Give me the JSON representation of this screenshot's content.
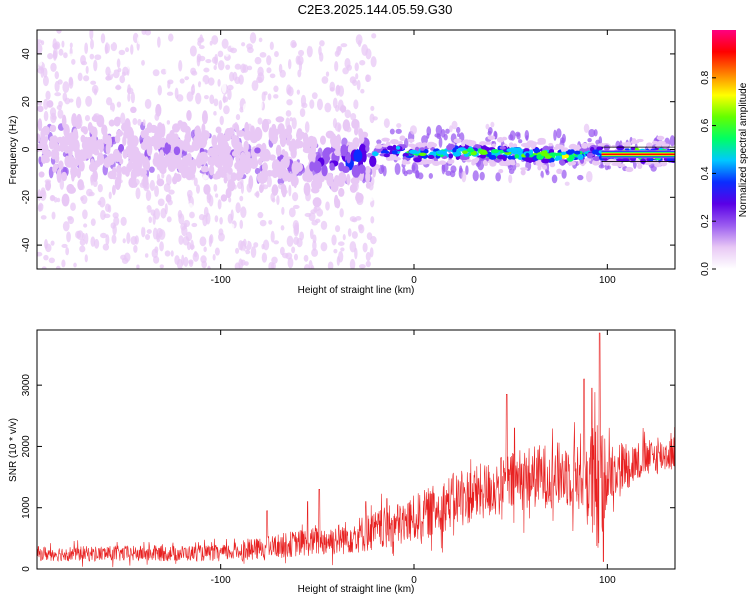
{
  "title": "C2E3.2025.144.05.59.G30",
  "chart_data": [
    {
      "type": "heatmap",
      "xlabel": "Height of straight line (km)",
      "ylabel": "Frequency (Hz)",
      "xlim": [
        -195,
        135
      ],
      "ylim": [
        -50,
        50
      ],
      "x_ticks": [
        -100,
        0,
        100
      ],
      "x_tick_labels": [
        "-100",
        "0",
        "100"
      ],
      "y_ticks": [
        -40,
        -20,
        0,
        20,
        40
      ],
      "y_tick_labels": [
        "-40",
        "-20",
        "0",
        "20",
        "40"
      ],
      "colorbar": {
        "label": "Normalized spectral amplitude",
        "range": [
          0,
          1
        ],
        "ticks": [
          0.0,
          0.2,
          0.4,
          0.6,
          0.8
        ],
        "tick_labels": [
          "0.0",
          "0.2",
          "0.4",
          "0.6",
          "0.8"
        ],
        "colors": [
          "#ffffff",
          "#e8c8f5",
          "#9b5cf0",
          "#5a00e6",
          "#0a2dff",
          "#00c8ff",
          "#00ff64",
          "#64ff00",
          "#ffff00",
          "#ff8000",
          "#ff0000",
          "#ff0080"
        ]
      },
      "ridge": {
        "description_points_x": [
          -195,
          -150,
          -100,
          -60,
          -40,
          -25,
          -10,
          0,
          20,
          60,
          80,
          92,
          100,
          135
        ],
        "center_freq_y": [
          0,
          0,
          -1,
          -4,
          -6,
          -3,
          0,
          -2,
          -1,
          -2,
          -3,
          -1,
          -2,
          -2
        ],
        "peak_amplitude": [
          0.15,
          0.2,
          0.2,
          0.25,
          0.35,
          0.45,
          0.6,
          0.7,
          0.75,
          0.8,
          0.8,
          0.5,
          0.9,
          0.95
        ]
      },
      "grid": false
    },
    {
      "type": "line",
      "xlabel": "Height of straight line (km)",
      "ylabel": "SNR (10 * v/v)",
      "xlim": [
        -195,
        135
      ],
      "ylim": [
        0,
        3900
      ],
      "x_ticks": [
        -100,
        0,
        100
      ],
      "x_tick_labels": [
        "-100",
        "0",
        "100"
      ],
      "y_ticks": [
        0,
        1000,
        2000,
        3000
      ],
      "y_tick_labels": [
        "0",
        "1000",
        "2000",
        "3000"
      ],
      "series": [
        {
          "color": "#e82020",
          "trend_x": [
            -195,
            -150,
            -100,
            -80,
            -60,
            -40,
            -20,
            -5,
            10,
            20,
            40,
            60,
            80,
            88,
            95,
            100,
            120,
            135
          ],
          "trend_y": [
            250,
            250,
            260,
            330,
            420,
            480,
            620,
            750,
            950,
            1120,
            1300,
            1500,
            1550,
            1600,
            1200,
            1600,
            1800,
            1900
          ],
          "noise_amplitude": [
            120,
            130,
            130,
            180,
            220,
            260,
            330,
            380,
            420,
            450,
            480,
            520,
            550,
            700,
            1200,
            500,
            300,
            280
          ],
          "spikes_x": [
            -76,
            -55,
            -49,
            -25,
            -14,
            48,
            52,
            88,
            92,
            96,
            98
          ],
          "spikes_y": [
            950,
            1100,
            1300,
            1100,
            1150,
            2850,
            2300,
            3100,
            2950,
            3850,
            120
          ]
        }
      ],
      "grid": false
    }
  ]
}
